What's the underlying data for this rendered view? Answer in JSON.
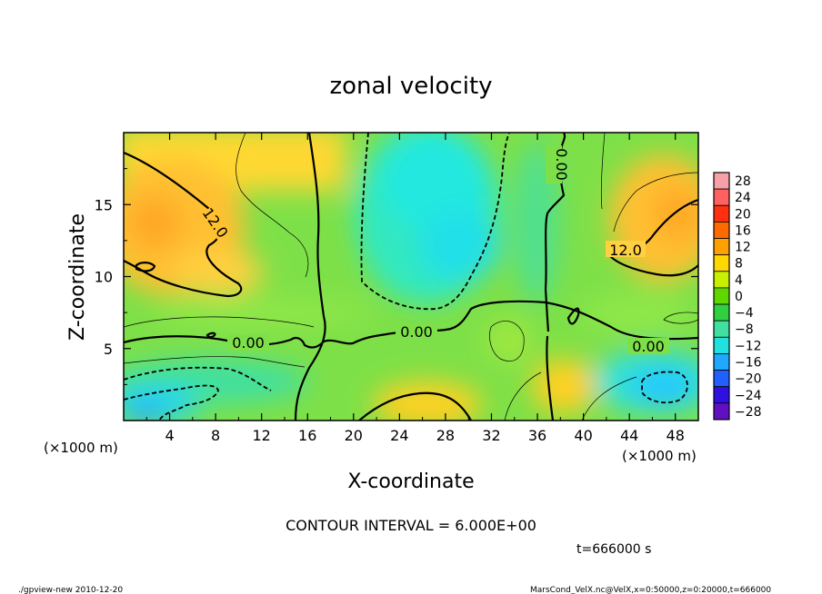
{
  "chart_data": {
    "type": "heatmap",
    "title": "zonal velocity",
    "xlabel": "X-coordinate",
    "ylabel": "Z-coordinate",
    "x_unit": "(×1000 m)",
    "y_unit": "(×1000 m)",
    "xlim": [
      0,
      50
    ],
    "ylim": [
      0,
      20
    ],
    "x_ticks": [
      "4",
      "8",
      "12",
      "16",
      "20",
      "24",
      "28",
      "32",
      "36",
      "40",
      "44",
      "48"
    ],
    "y_ticks": [
      "5",
      "10",
      "15"
    ],
    "colorbar": {
      "levels": [
        "28",
        "24",
        "20",
        "16",
        "12",
        "8",
        "4",
        "0",
        "−4",
        "−8",
        "−12",
        "−16",
        "−20",
        "−24",
        "−28"
      ],
      "colors": [
        "#f8a0a8",
        "#ff6060",
        "#ff3010",
        "#ff6a00",
        "#ffa000",
        "#ffd800",
        "#c8f000",
        "#60d800",
        "#30d040",
        "#40e0a0",
        "#20e0e0",
        "#20a8ff",
        "#2060ff",
        "#3010e0",
        "#6010c0"
      ]
    },
    "contour_labels": [
      "12.0",
      "12.0",
      "0.00",
      "0.00",
      "0.00",
      "0.00"
    ],
    "contour_interval_text": "CONTOUR INTERVAL = 6.000E+00",
    "time_text": "t=666000 s",
    "footer_left": "./gpview-new  2010-12-20",
    "footer_right": "MarsCond_VelX.nc@VelX,x=0:50000,z=0:20000,t=666000"
  }
}
